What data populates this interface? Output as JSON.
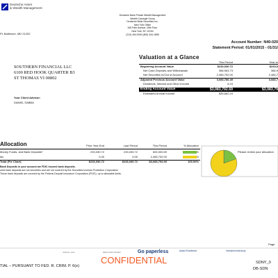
{
  "header": {
    "logo": [
      "Deutsche Asset",
      "& Wealth Management"
    ],
    "office_address": "PL Baltimore, MD 21202",
    "branch": [
      "Deutsche Bank Private Wealth Management",
      "Wealth Carnegie Group",
      "Deutsche Bank Securities Inc.",
      "New York Office",
      "345 Park Avenue, 26th Floor",
      "New York, NY 10154",
      "(212) 454-9000 (800) 334-1898"
    ],
    "account_number": "Account Number: N40-020",
    "statement_period": "Statement Period: 01/01/2015 - 01/31/"
  },
  "client": {
    "address": [
      "SOUTHERN FINANCIAL LLC",
      "6100 RED HOOK QUARTER B3",
      "ST THOMAS VI 00802"
    ],
    "advisor_label": "Your Client Advisor:",
    "advisor": "DANIEL SABBA"
  },
  "valuation": {
    "title": "Valuation at a Glance",
    "columns": [
      "This Period",
      "Year-to"
    ],
    "rows": [
      [
        "Beginning Account Value",
        "$233,030.72",
        "$233,0"
      ],
      [
        "Net Cash Deposits and Withdrawals",
        "366,963.73",
        "366,9"
      ],
      [
        "Net Securities In/Out of Account",
        "2,483,792.00",
        "2,483,7"
      ],
      [
        "Adjusted Previous Account Value",
        "3,083,786.45",
        "3,083,7"
      ],
      [
        "Dividends, Interest and Other Income",
        "6.24",
        ""
      ],
      [
        "Ending Account Value",
        "$3,083,792.69",
        "$3,083,79"
      ],
      [
        "Estimated Annual Income",
        "$39,662.24",
        ""
      ]
    ]
  },
  "allocation": {
    "title": "Allocation",
    "columns": [
      "Prior Year End",
      "Last Period",
      "This Period",
      "% Allocation"
    ],
    "rows": [
      [
        "Money Funds, and Bank Deposits*",
        "233,030.72",
        "233,030.72",
        "600,000.69",
        "19.46%"
      ],
      [
        "ies",
        "0.00",
        "0.00",
        "2,483,792.00",
        "80.54%"
      ],
      [
        "Total (Pie Chart)",
        "$233,030.72",
        "$233,030.72",
        "$3,083,792.69",
        "100.00%"
      ]
    ],
    "colors": [
      "#7ac143",
      "#f2d21b"
    ],
    "note": "Please review your allocation",
    "footnotes": [
      "Bank Deposits in your account are FDIC insured bank deposits.",
      "ured bank deposits are not securities and are not covered by the Securities Investor Protection Corporation",
      "These bank deposits are covered by the Federal Deposit Insurance Corporation (FDIC), up to allowable limits."
    ]
  },
  "footer": {
    "page": "Page",
    "logos": [
      "SIGNAL HILL",
      "REDUCED PAPER",
      "Go paperless",
      "Award Excellence",
      "Investment Advisory"
    ],
    "legend": "TIAL – PURSUANT TO FED. R. CRIM. P. 6(e)",
    "stamp": "CONFIDENTIAL",
    "bates": [
      "SDNY_0",
      "DB-SDN"
    ]
  }
}
